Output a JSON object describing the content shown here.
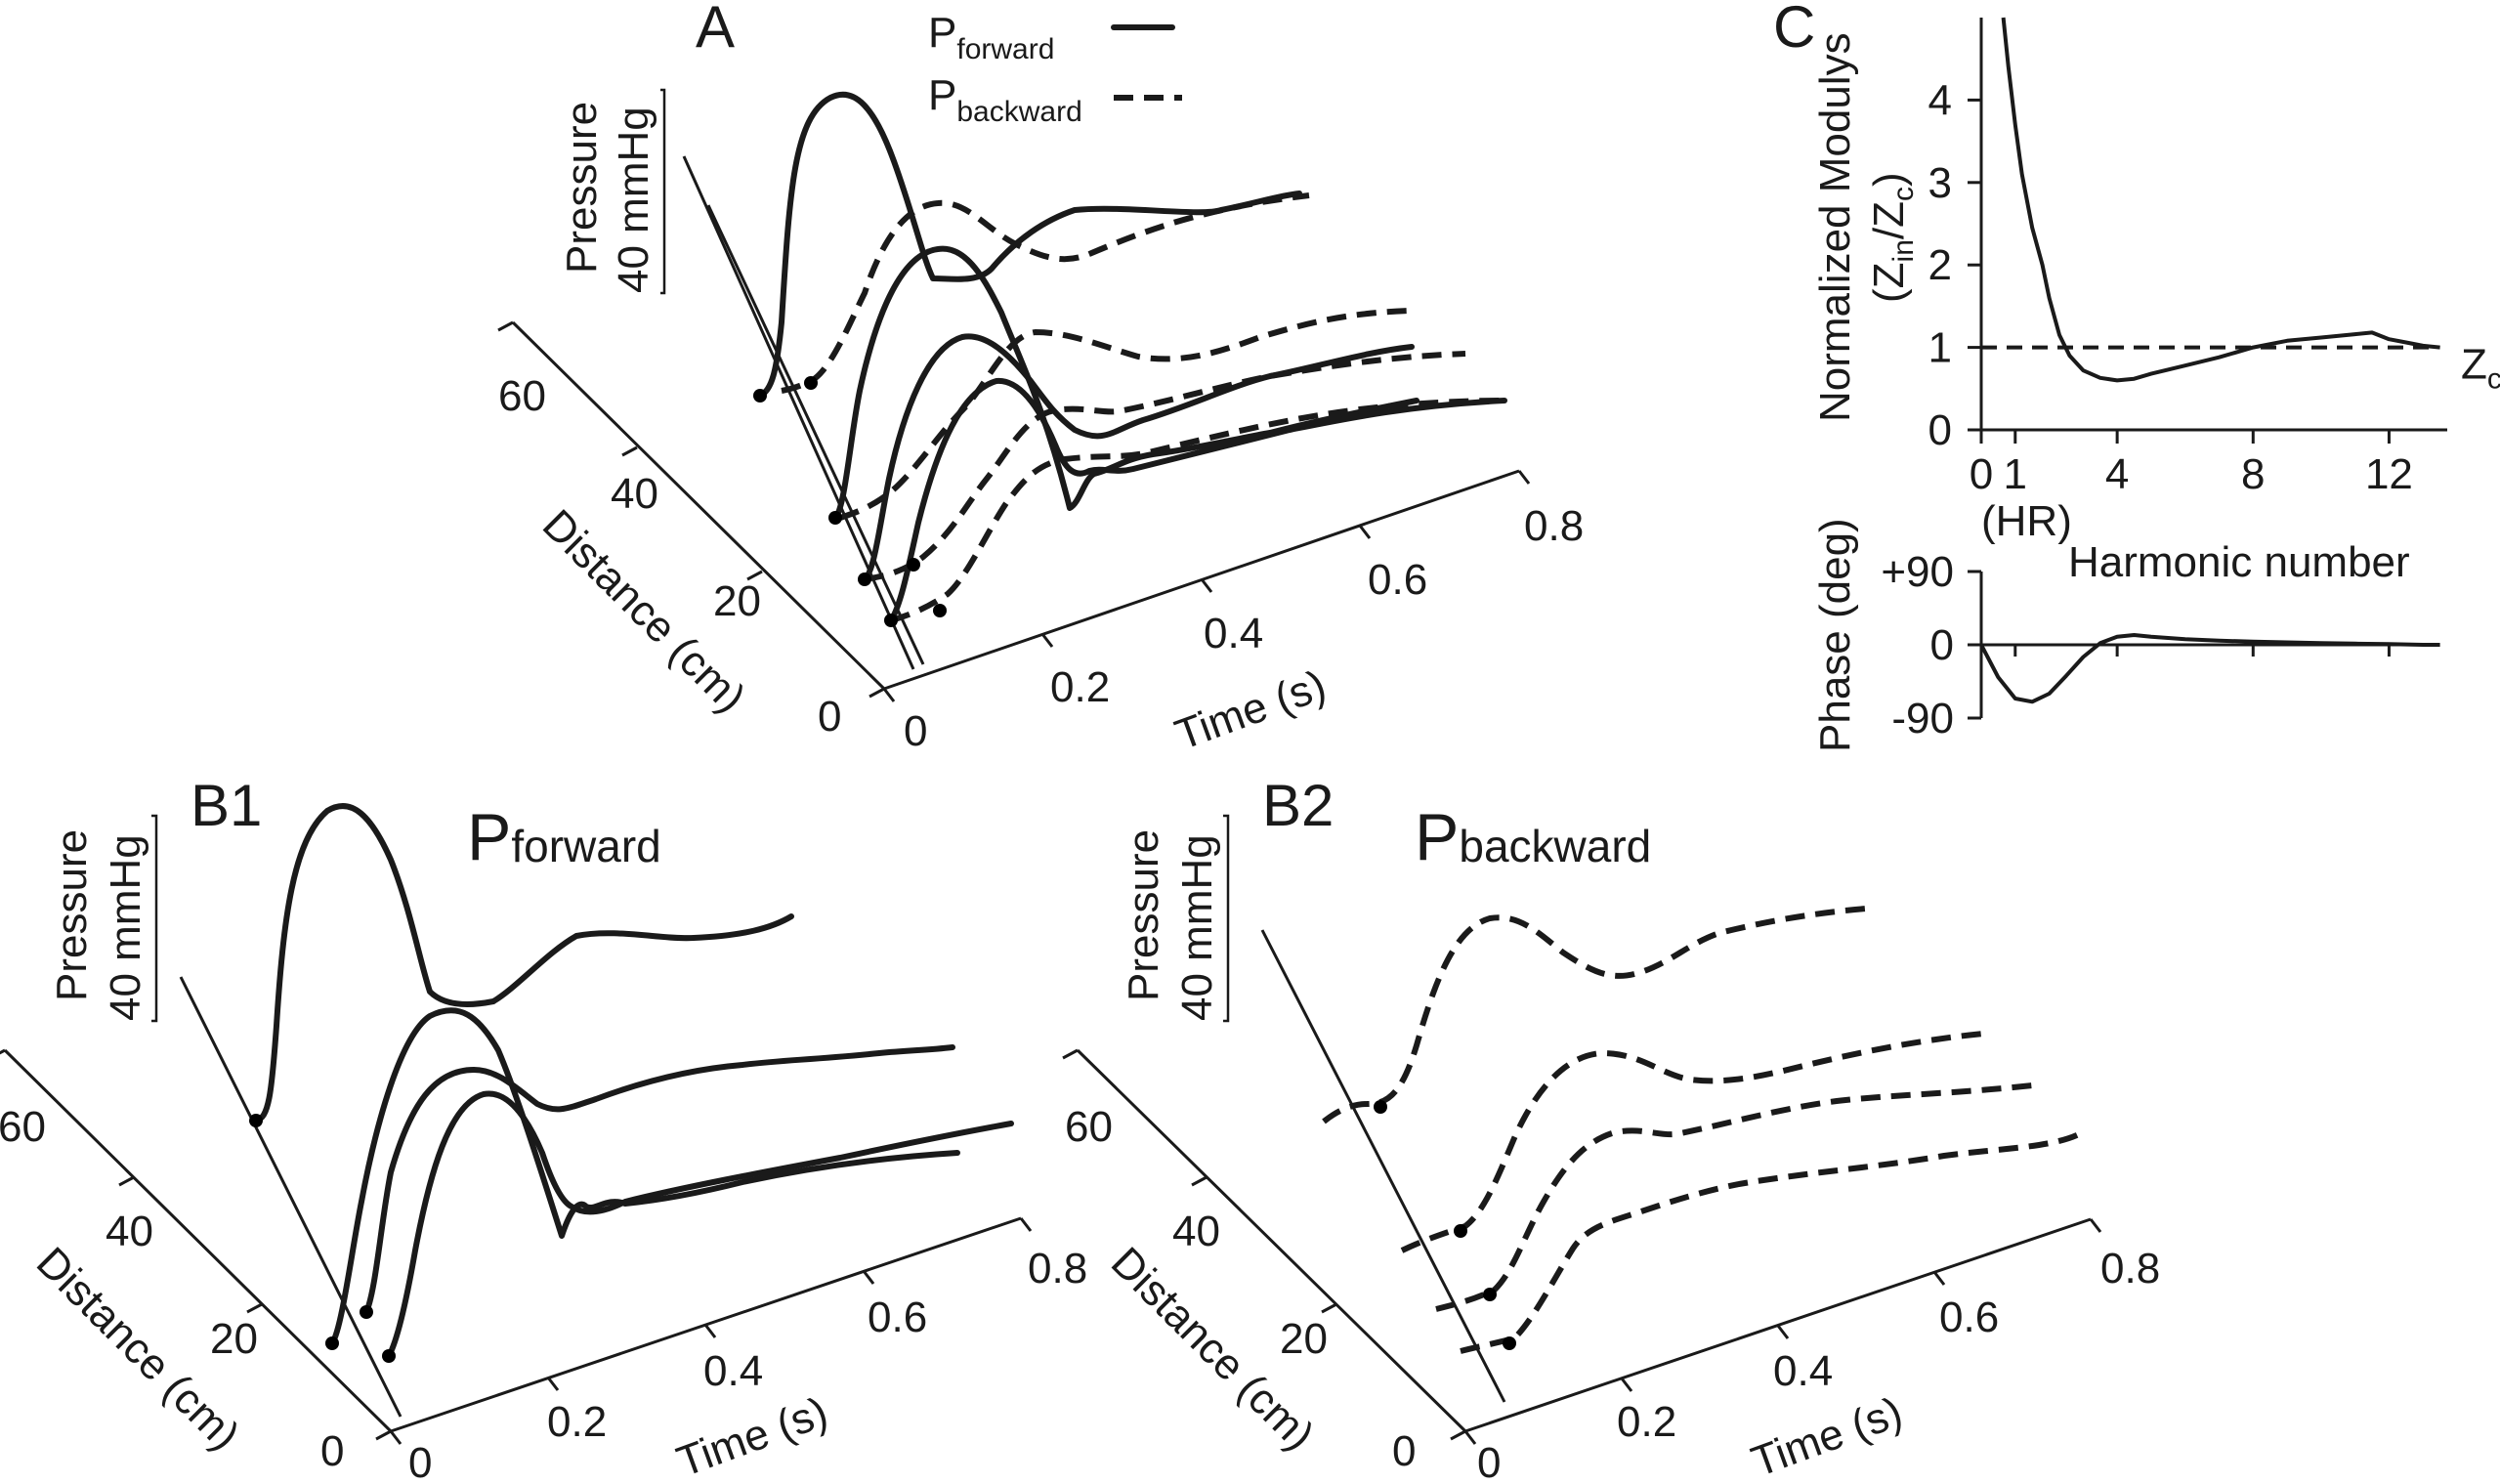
{
  "chart_data": [
    {
      "panel": "A",
      "type": "line",
      "panel_label": "A",
      "legend": {
        "placement": "top-center",
        "entries": [
          {
            "main": "P",
            "sub": "forward",
            "style": "solid"
          },
          {
            "main": "P",
            "sub": "backward",
            "style": "dashed"
          }
        ]
      },
      "time_axis": {
        "label": "Time (s)",
        "ticks": [
          "0",
          "0.2",
          "0.4",
          "0.6",
          "0.8"
        ]
      },
      "distance_axis": {
        "label": "Distance (cm)",
        "ticks": [
          "0",
          "20",
          "40",
          "60"
        ]
      },
      "pressure_scale": {
        "label": "Pressure",
        "bar": "40 mmHg"
      }
    },
    {
      "panel": "B1",
      "type": "line",
      "panel_label": "B1",
      "title": {
        "main": "P",
        "sub": "forward"
      },
      "time_axis": {
        "label": "Time (s)",
        "ticks": [
          "0",
          "0.2",
          "0.4",
          "0.6",
          "0.8"
        ]
      },
      "distance_axis": {
        "label": "Distance (cm)",
        "ticks": [
          "0",
          "20",
          "40",
          "60"
        ]
      },
      "pressure_scale": {
        "label": "Pressure",
        "bar": "40 mmHg"
      }
    },
    {
      "panel": "B2",
      "type": "line",
      "panel_label": "B2",
      "title": {
        "main": "P",
        "sub": "backward"
      },
      "time_axis": {
        "label": "Time (s)",
        "ticks": [
          "0",
          "0.2",
          "0.4",
          "0.6",
          "0.8"
        ]
      },
      "distance_axis": {
        "label": "Distance (cm)",
        "ticks": [
          "0",
          "20",
          "40",
          "60"
        ]
      },
      "pressure_scale": {
        "label": "Pressure",
        "bar": "40 mmHg"
      }
    },
    {
      "panel": "C-modulus",
      "type": "line",
      "panel_label": "C",
      "ylabel": "Normalized Modulys",
      "ylabel_ratio": {
        "z1": "Z",
        "s1": "in",
        "sep": "/",
        "z2": "Z",
        "s2": "c"
      },
      "xlim": [
        0,
        14
      ],
      "ylim": [
        0,
        5
      ],
      "x_ticks": [
        0,
        1,
        4,
        8,
        12
      ],
      "y_ticks": [
        0,
        1,
        2,
        3,
        4
      ],
      "x_unit_label": "(HR)",
      "xlabel": "Harmonic number",
      "reference": {
        "value": 1,
        "label_main": "Z",
        "label_sub": "c"
      },
      "series": [
        {
          "x": [
            0.65,
            0.8,
            1.0,
            1.2,
            1.5,
            1.8,
            2.0,
            2.3,
            2.6,
            3.0,
            3.5,
            4.0,
            4.5,
            5.0,
            6.0,
            7.0,
            8.0,
            9.0,
            10.0,
            11.0,
            11.5,
            12.0,
            12.5,
            13.0,
            13.5
          ],
          "y": [
            5.0,
            4.4,
            3.7,
            3.1,
            2.45,
            2.0,
            1.6,
            1.15,
            0.9,
            0.72,
            0.63,
            0.6,
            0.62,
            0.68,
            0.78,
            0.88,
            1.0,
            1.08,
            1.12,
            1.16,
            1.18,
            1.1,
            1.06,
            1.02,
            1.0
          ]
        }
      ]
    },
    {
      "panel": "C-phase",
      "type": "line",
      "ylabel": "Phase (deg)",
      "xlim": [
        0,
        14
      ],
      "ylim": [
        -90,
        90
      ],
      "y_ticks": [
        "+90",
        "0",
        "-90"
      ],
      "y_tick_values": [
        90,
        0,
        -90
      ],
      "series": [
        {
          "x": [
            0,
            0.5,
            1.0,
            1.5,
            2.0,
            2.5,
            3.0,
            3.5,
            4.0,
            4.5,
            5.0,
            6.0,
            7.0,
            8.0,
            9.0,
            10.0,
            11.0,
            12.0,
            13.0,
            13.5
          ],
          "y": [
            0,
            -40,
            -66,
            -70,
            -60,
            -38,
            -15,
            2,
            10,
            12,
            10,
            7,
            5,
            4,
            3,
            2,
            1.5,
            1,
            0,
            0
          ]
        }
      ]
    }
  ]
}
